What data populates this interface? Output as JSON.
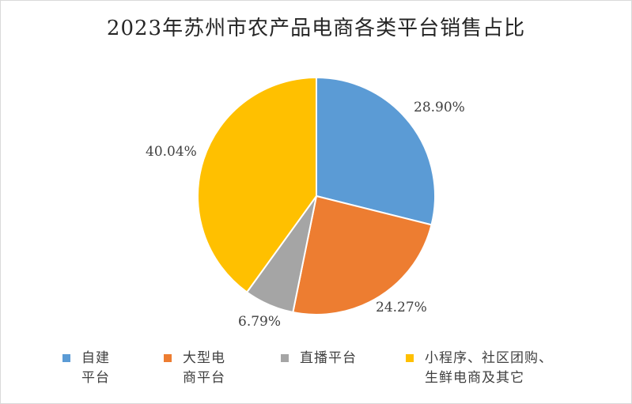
{
  "chart_data": {
    "type": "pie",
    "title": "2023年苏州市农产品电商各类平台销售占比",
    "categories": [
      "自建平台",
      "大型电商平台",
      "直播平台",
      "小程序、社区团购、生鲜电商及其它"
    ],
    "values": [
      28.9,
      24.27,
      6.79,
      40.04
    ],
    "value_labels": [
      "28.90%",
      "24.27%",
      "6.79%",
      "40.04%"
    ],
    "legend_labels": [
      "自建\n平台",
      "大型电\n商平台",
      "直播平台",
      "小程序、社区团购、\n生鲜电商及其它"
    ],
    "colors": [
      "#5b9bd5",
      "#ed7d31",
      "#a5a5a5",
      "#ffc000"
    ],
    "legend_position": "bottom",
    "start_angle": "12 o'clock",
    "direction": "clockwise"
  }
}
